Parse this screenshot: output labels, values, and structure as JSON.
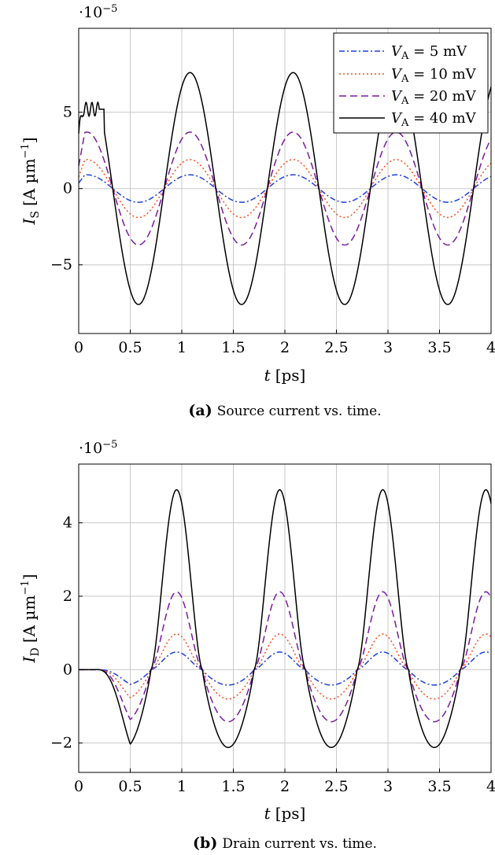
{
  "chart_data": [
    {
      "type": "line",
      "id": "a",
      "caption_label": "(a)",
      "caption_text": "Source current vs. time.",
      "exponent_label": "·10",
      "exponent_power": "−5",
      "xlabel_var": "t",
      "xlabel_unit": "[ps]",
      "ylabel_var": "I",
      "ylabel_sub": "S",
      "ylabel_unit": "[A µm",
      "ylabel_pow": "−1",
      "ylabel_close": "]",
      "xlim": [
        0,
        4
      ],
      "ylim": [
        -9.5,
        10.5
      ],
      "xticks": [
        0,
        0.5,
        1,
        1.5,
        2,
        2.5,
        3,
        3.5,
        4
      ],
      "xtick_labels": [
        "0",
        "0.5",
        "1",
        "1.5",
        "2",
        "2.5",
        "3",
        "3.5",
        "4"
      ],
      "yticks": [
        -5,
        0,
        5
      ],
      "ytick_labels": [
        "−5",
        "0",
        "5"
      ],
      "grid": true,
      "legend": "top-right",
      "series": [
        {
          "name_var": "V",
          "name_sub": "A",
          "name_val": " = 5 mV",
          "amplitude": 0.9,
          "color": "#1f3fe0",
          "dash": "7,3,2,3"
        },
        {
          "name_var": "V",
          "name_sub": "A",
          "name_val": " = 10 mV",
          "amplitude": 1.9,
          "color": "#ff4a1a",
          "dash": "2,3"
        },
        {
          "name_var": "V",
          "name_sub": "A",
          "name_val": " = 20 mV",
          "amplitude": 3.7,
          "color": "#7a1aa0",
          "dash": "9,5"
        },
        {
          "name_var": "V",
          "name_sub": "A",
          "name_val": " = 40 mV",
          "amplitude": 7.6,
          "color": "#000000",
          "dash": ""
        }
      ]
    },
    {
      "type": "line",
      "id": "b",
      "caption_label": "(b)",
      "caption_text": "Drain current vs. time.",
      "exponent_label": "·10",
      "exponent_power": "−5",
      "xlabel_var": "t",
      "xlabel_unit": "[ps]",
      "ylabel_var": "I",
      "ylabel_sub": "D",
      "ylabel_unit": "[A µm",
      "ylabel_pow": "−1",
      "ylabel_close": "]",
      "xlim": [
        0,
        4
      ],
      "ylim": [
        -2.8,
        5.6
      ],
      "xticks": [
        0,
        0.5,
        1,
        1.5,
        2,
        2.5,
        3,
        3.5,
        4
      ],
      "xtick_labels": [
        "0",
        "0.5",
        "1",
        "1.5",
        "2",
        "2.5",
        "3",
        "3.5",
        "4"
      ],
      "yticks": [
        -2,
        0,
        2,
        4
      ],
      "ytick_labels": [
        "−2",
        "0",
        "2",
        "4"
      ],
      "grid": true,
      "legend": "none",
      "series": [
        {
          "name": "5 mV",
          "peak": 0.48,
          "trough": -0.42,
          "color": "#1f3fe0",
          "dash": "7,3,2,3"
        },
        {
          "name": "10 mV",
          "peak": 0.97,
          "trough": -0.8,
          "color": "#ff4a1a",
          "dash": "2,3"
        },
        {
          "name": "20 mV",
          "peak": 2.12,
          "trough": -1.42,
          "color": "#7a1aa0",
          "dash": "9,5"
        },
        {
          "name": "40 mV",
          "peak": 4.9,
          "trough": -2.12,
          "color": "#000000",
          "dash": ""
        }
      ]
    }
  ]
}
